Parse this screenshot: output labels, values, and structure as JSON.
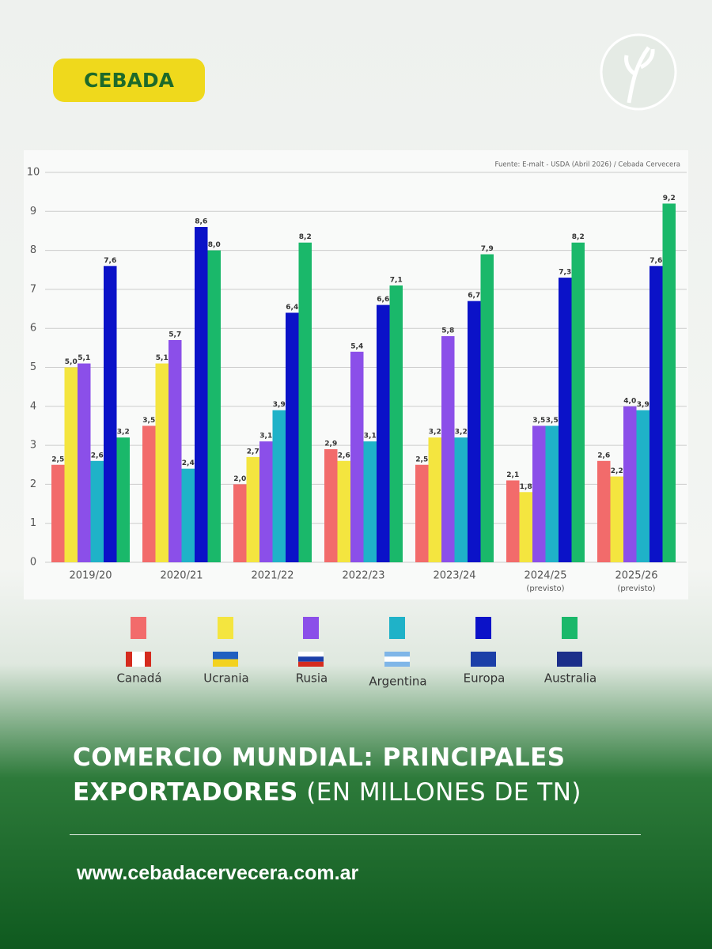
{
  "badge": "CEBADA",
  "website": "www.cebadacervecera.com.ar",
  "chart_data": {
    "type": "bar",
    "title": "COMERCIO MUNDIAL: PRINCIPALES EXPORTADORES",
    "unit": "(EN MILLONES DE TN)",
    "source": "Fuente: E-malt - USDA (Abril 2026) / Cebada Cervecera",
    "categories": [
      "2019/20",
      "2020/21",
      "2021/22",
      "2022/23",
      "2023/24",
      "2024/25",
      "2025/26"
    ],
    "category_notes": [
      null,
      null,
      null,
      null,
      null,
      "(previsto)",
      "(previsto)"
    ],
    "ylim": [
      0,
      10
    ],
    "yticks": [
      0,
      1,
      2,
      3,
      4,
      5,
      6,
      7,
      8,
      9,
      10
    ],
    "grid": true,
    "series": [
      {
        "name": "Canadá",
        "color": "#f26b6b",
        "values": [
          2.5,
          3.5,
          2.0,
          2.9,
          2.5,
          2.1,
          2.6
        ],
        "value_labels": [
          "2,5",
          "3,5",
          "2,0",
          "2,9",
          "2,5",
          "2,1",
          "2,6"
        ]
      },
      {
        "name": "Ucrania",
        "color": "#f4e53f",
        "values": [
          5.0,
          5.1,
          2.7,
          2.6,
          3.2,
          1.8,
          2.2
        ],
        "value_labels": [
          "5,0",
          "5,1",
          "2,7",
          "2,6",
          "3,2",
          "1,8",
          "2,2"
        ]
      },
      {
        "name": "Rusia",
        "color": "#8b4fe9",
        "values": [
          5.1,
          5.7,
          3.1,
          5.4,
          5.8,
          3.5,
          4.0
        ],
        "value_labels": [
          "5,1",
          "5,7",
          "3,1",
          "5,4",
          "5,8",
          "3,5",
          "4,0"
        ]
      },
      {
        "name": "Argentina",
        "color": "#1fb2c8",
        "values": [
          2.6,
          2.4,
          3.9,
          3.1,
          3.2,
          3.5,
          3.9
        ],
        "value_labels": [
          "2,6",
          "2,4",
          "3,9",
          "3,1",
          "3,2",
          "3,5",
          "3,9"
        ]
      },
      {
        "name": "Europa",
        "color": "#0b12c8",
        "values": [
          7.6,
          8.6,
          6.4,
          6.6,
          6.7,
          7.3,
          7.6
        ],
        "value_labels": [
          "7,6",
          "8,6",
          "6,4",
          "6,6",
          "6,7",
          "7,3",
          "7,6"
        ]
      },
      {
        "name": "Australia",
        "color": "#1ab86a",
        "values": [
          3.2,
          8.0,
          8.2,
          7.1,
          7.9,
          8.2,
          9.2
        ],
        "value_labels": [
          "3,2",
          "8,0",
          "8,2",
          "7,1",
          "7,9",
          "8,2",
          "9,2"
        ]
      }
    ]
  }
}
